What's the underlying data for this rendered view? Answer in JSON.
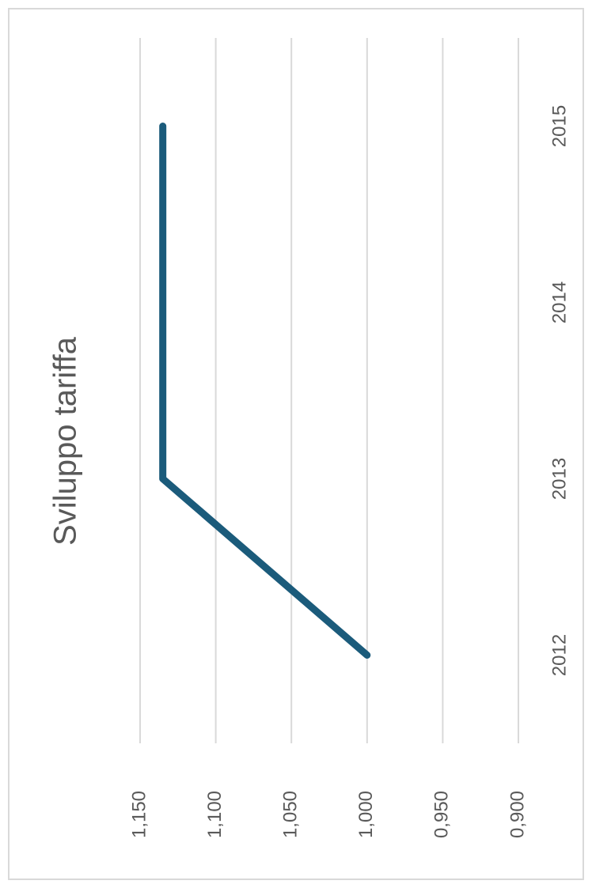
{
  "chart_data": {
    "type": "line",
    "title": "Sviluppo tariffa",
    "categories": [
      "2012",
      "2013",
      "2014",
      "2015"
    ],
    "values": [
      1.0,
      1.135,
      1.135,
      1.135
    ],
    "color": "#1b5b7b",
    "ylim": [
      0.9,
      1.15
    ],
    "yticks": [
      {
        "value": 0.9,
        "label": "0,900"
      },
      {
        "value": 0.95,
        "label": "0,950"
      },
      {
        "value": 1.0,
        "label": "1,000"
      },
      {
        "value": 1.05,
        "label": "1,050"
      },
      {
        "value": 1.1,
        "label": "1,100"
      },
      {
        "value": 1.15,
        "label": "1,150"
      }
    ],
    "grid": true
  }
}
